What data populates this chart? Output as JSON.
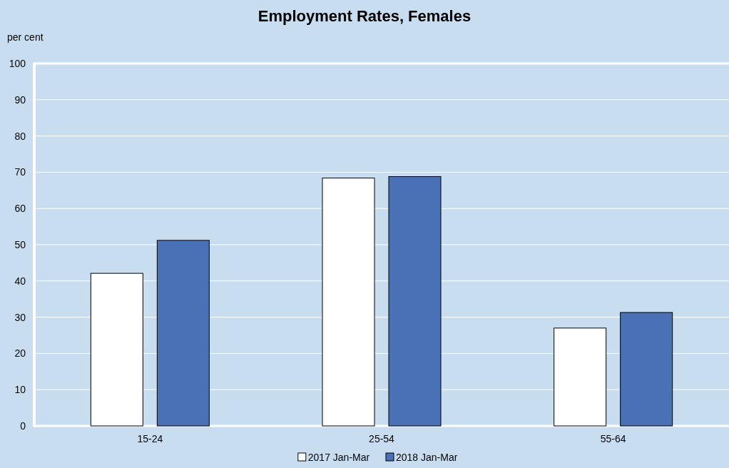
{
  "chart_data": {
    "type": "bar",
    "title": "Employment Rates, Females",
    "ylabel": "per cent",
    "categories": [
      "15-24",
      "25-54",
      "55-64"
    ],
    "series": [
      {
        "name": "2017 Jan-Mar",
        "color": "#ffffff",
        "values": [
          42.1,
          68.4,
          27.0
        ]
      },
      {
        "name": "2018 Jan-Mar",
        "color": "#4a71b5",
        "values": [
          51.2,
          68.8,
          31.3
        ]
      }
    ],
    "ylim": [
      0,
      100
    ],
    "yticks": [
      0,
      10,
      20,
      30,
      40,
      50,
      60,
      70,
      80,
      90,
      100
    ],
    "grid": "y",
    "legend": "bottom"
  }
}
